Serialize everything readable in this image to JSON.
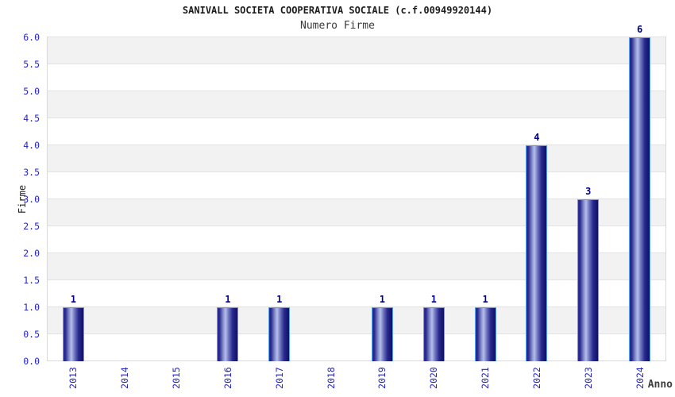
{
  "chart_data": {
    "type": "bar",
    "title": "SANIVALL SOCIETA COOPERATIVA SOCIALE (c.f.00949920144)",
    "subtitle": "Numero Firme",
    "xlabel": "Anno",
    "ylabel": "Firme",
    "categories": [
      "2013",
      "2014",
      "2015",
      "2016",
      "2017",
      "2018",
      "2019",
      "2020",
      "2021",
      "2022",
      "2023",
      "2024"
    ],
    "values": [
      1,
      0,
      0,
      1,
      1,
      0,
      1,
      1,
      1,
      4,
      3,
      6
    ],
    "ylim": [
      0,
      6
    ],
    "ytick_step": 0.5,
    "ytick_labels": [
      "0.0",
      "0.5",
      "1.0",
      "1.5",
      "2.0",
      "2.5",
      "3.0",
      "3.5",
      "4.0",
      "4.5",
      "5.0",
      "5.5",
      "6.0"
    ],
    "bar_labels": [
      "1",
      "",
      "",
      "1",
      "1",
      "",
      "1",
      "1",
      "1",
      "4",
      "3",
      "6"
    ],
    "legend": null,
    "grid": "horizontal-bands-alternating",
    "colors": {
      "bar_dark": "#23238a",
      "bar_highlight": "#b6bee9",
      "bar_border": "#5aa2f0",
      "value_label": "#00008b",
      "tick_label": "#2323cc",
      "band_gray": "#f2f2f2",
      "band_white": "#ffffff",
      "gridline": "#e2e2e2",
      "title_text": "#1c1c1c",
      "axis_title_text": "#3f3f3f"
    }
  }
}
